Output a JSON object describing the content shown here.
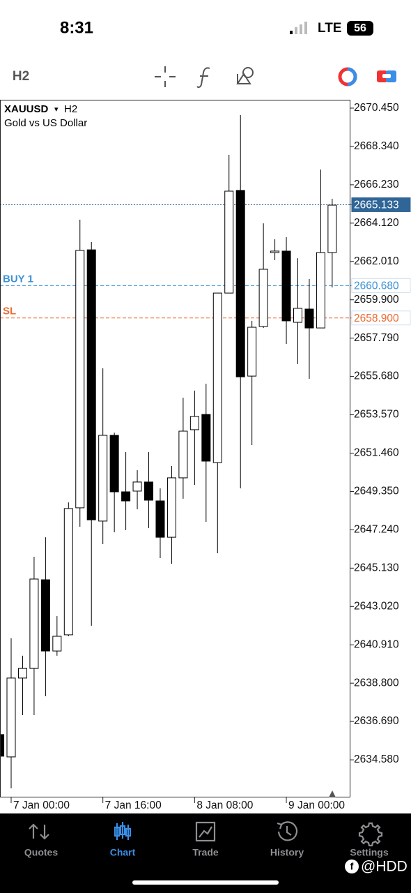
{
  "status_bar": {
    "time": "8:31",
    "network": "LTE",
    "battery": "56"
  },
  "toolbar": {
    "timeframe": "H2"
  },
  "chart_data": {
    "type": "candlestick",
    "symbol": "XAUUSD",
    "symbol_arrow": "▾",
    "timeframe": "H2",
    "description": "Gold vs US Dollar",
    "categories": [
      null,
      "7 Jan 00:00",
      null,
      null,
      null,
      null,
      null,
      null,
      null,
      "7 Jan 16:00",
      null,
      null,
      null,
      null,
      null,
      null,
      null,
      "8 Jan 08:00",
      null,
      null,
      null,
      null,
      null,
      null,
      null,
      "9 Jan 00:00",
      null,
      null,
      null,
      null
    ],
    "open": [
      2635.97,
      2634.74,
      2639.08,
      2639.61,
      2644.49,
      2640.57,
      2641.46,
      2648.45,
      2662.65,
      2647.72,
      2652.44,
      2649.33,
      2649.37,
      2649.87,
      2648.83,
      2646.83,
      2650.1,
      2652.75,
      2653.59,
      2650.94,
      2660.27,
      2665.92,
      2655.7,
      2658.43,
      2662.5,
      2662.58,
      2658.66,
      2659.39,
      2658.35,
      2662.5
    ],
    "high": [
      2636.08,
      2641.27,
      2640.31,
      2645.76,
      2646.83,
      2642.49,
      2648.75,
      2664.31,
      2663.08,
      2656.13,
      2652.59,
      2651.52,
      2650.52,
      2651.52,
      2649.52,
      2650.75,
      2654.51,
      2654.9,
      2655.28,
      2660.27,
      2667.88,
      2670.07,
      2658.74,
      2664.11,
      2663.23,
      2663.35,
      2662.19,
      2661.04,
      2667.07,
      2665.46
    ],
    "low": [
      2634.55,
      2633.01,
      2637.04,
      2637.04,
      2638.08,
      2640.31,
      2641.38,
      2647.41,
      2641.96,
      2646.45,
      2647.1,
      2647.22,
      2648.37,
      2647.33,
      2645.68,
      2645.37,
      2648.95,
      2649.71,
      2647.68,
      2645.95,
      2660.27,
      2649.52,
      2651.9,
      2658.35,
      2662.08,
      2657.47,
      2656.36,
      2655.55,
      2658.35,
      2660.58
    ],
    "close": [
      2634.78,
      2639.08,
      2639.61,
      2644.53,
      2640.57,
      2641.38,
      2648.41,
      2662.62,
      2647.79,
      2652.44,
      2649.33,
      2648.83,
      2649.87,
      2648.87,
      2646.83,
      2650.1,
      2652.67,
      2653.48,
      2651.02,
      2660.27,
      2665.88,
      2655.66,
      2658.39,
      2661.58,
      2662.58,
      2658.74,
      2659.43,
      2658.35,
      2662.5,
      2665.11
    ],
    "up_color": "#ffffff",
    "down_color": "#000000",
    "ylim": [
      2632.51,
      2670.91
    ],
    "yticks": [
      {
        "value": 2670.45,
        "label": "2670.450"
      },
      {
        "value": 2668.34,
        "label": "2668.340"
      },
      {
        "value": 2666.23,
        "label": "2666.230"
      },
      {
        "value": 2664.12,
        "label": "2664.120"
      },
      {
        "value": 2662.01,
        "label": "2662.010"
      },
      {
        "value": 2659.9,
        "label": "2659.900"
      },
      {
        "value": 2657.79,
        "label": "2657.790"
      },
      {
        "value": 2655.68,
        "label": "2655.680"
      },
      {
        "value": 2653.57,
        "label": "2653.570"
      },
      {
        "value": 2651.46,
        "label": "2651.460"
      },
      {
        "value": 2649.35,
        "label": "2649.350"
      },
      {
        "value": 2647.24,
        "label": "2647.240"
      },
      {
        "value": 2645.13,
        "label": "2645.130"
      },
      {
        "value": 2643.02,
        "label": "2643.020"
      },
      {
        "value": 2640.91,
        "label": "2640.910"
      },
      {
        "value": 2638.8,
        "label": "2638.800"
      },
      {
        "value": 2636.69,
        "label": "2636.690"
      },
      {
        "value": 2634.58,
        "label": "2634.580"
      }
    ],
    "levels": [
      {
        "price": 2665.133,
        "color": "#2f6597",
        "style": "current"
      },
      {
        "name": "BUY 1",
        "price": {
          "value": 2660.68,
          "label": "2660.680"
        },
        "color": "#3d92d6",
        "style": "order"
      },
      {
        "name": "SL",
        "price": {
          "value": 2658.9,
          "label": "2658.900"
        },
        "color": "#ec6a32",
        "style": "order"
      }
    ]
  },
  "nav": {
    "items": [
      "Quotes",
      "Chart",
      "Trade",
      "History",
      "Settings"
    ],
    "active": 1
  },
  "watermark": "@HDD"
}
